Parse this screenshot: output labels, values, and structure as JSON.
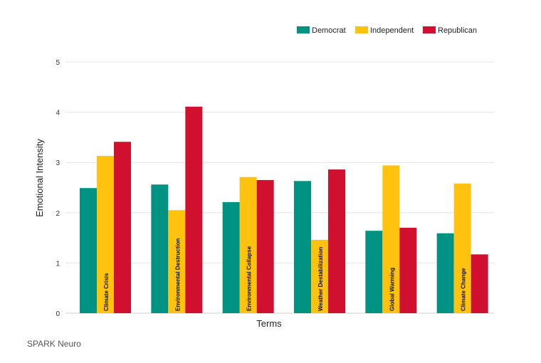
{
  "chart_data": {
    "type": "bar",
    "xlabel": "Terms",
    "ylabel": "Emotional Intensity",
    "ylim": [
      0,
      5
    ],
    "yticks": [
      0,
      1,
      2,
      3,
      4,
      5
    ],
    "grid": true,
    "legend_position": "top-right",
    "categories": [
      "Climate Crisis",
      "Environmental Destruction",
      "Environmental Collapse",
      "Weather Destabilization",
      "Global Warming",
      "Climate Change"
    ],
    "series": [
      {
        "name": "Democrat",
        "color": "#009383",
        "values": [
          2.49,
          2.56,
          2.21,
          2.63,
          1.64,
          1.59
        ]
      },
      {
        "name": "Independent",
        "color": "#FFC20E",
        "values": [
          3.13,
          2.05,
          2.71,
          1.46,
          2.94,
          2.58
        ]
      },
      {
        "name": "Republican",
        "color": "#D0102E",
        "values": [
          3.41,
          4.11,
          2.65,
          2.86,
          1.7,
          1.17
        ]
      }
    ]
  },
  "source": "SPARK Neuro"
}
